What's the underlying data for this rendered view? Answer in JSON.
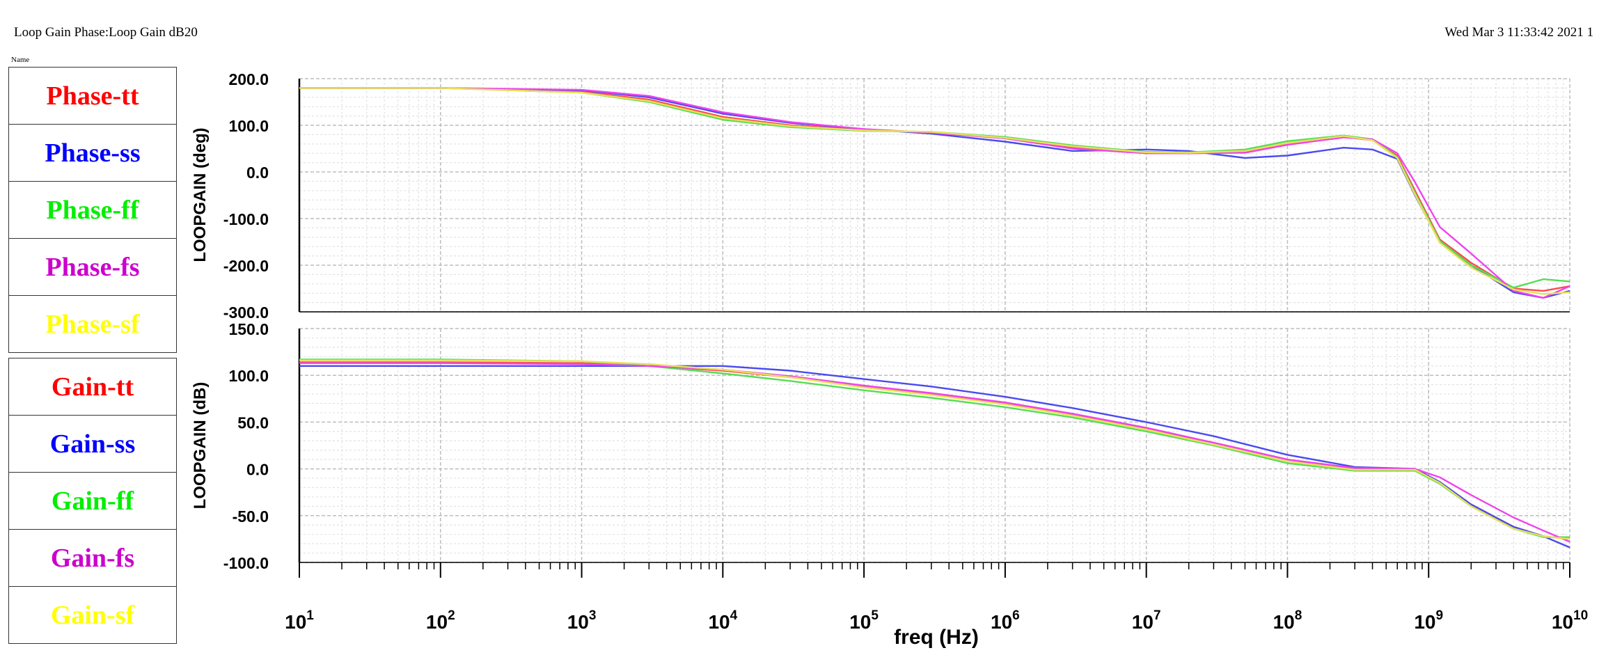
{
  "header": {
    "title": "Loop Gain Phase:Loop Gain dB20",
    "datetime": "Wed Mar 3 11:33:42 2021  1",
    "name_label": "Name"
  },
  "legend_phase": [
    {
      "label": "Phase-tt",
      "color": "#ff0000"
    },
    {
      "label": "Phase-ss",
      "color": "#0000ff"
    },
    {
      "label": "Phase-ff",
      "color": "#00ee00"
    },
    {
      "label": "Phase-fs",
      "color": "#cc00cc"
    },
    {
      "label": "Phase-sf",
      "color": "#ffff00"
    }
  ],
  "legend_gain": [
    {
      "label": "Gain-tt",
      "color": "#ff0000"
    },
    {
      "label": "Gain-ss",
      "color": "#0000ff"
    },
    {
      "label": "Gain-ff",
      "color": "#00ee00"
    },
    {
      "label": "Gain-fs",
      "color": "#cc00cc"
    },
    {
      "label": "Gain-sf",
      "color": "#ffff00"
    }
  ],
  "chart_data": [
    {
      "type": "line",
      "id": "phase",
      "ylabel": "LOOPGAIN (deg)",
      "xlabel": "freq (Hz)",
      "xscale": "log",
      "xlim": [
        10,
        10000000000
      ],
      "ylim": [
        -300,
        200
      ],
      "yticks": [
        "200.0",
        "100.0",
        "0.0",
        "-100.0",
        "-200.0",
        "-300.0"
      ],
      "grid": true,
      "x": [
        10,
        100,
        1000,
        3000,
        10000,
        30000,
        100000,
        300000,
        1000000,
        3000000,
        10000000,
        20000000,
        50000000,
        100000000,
        250000000,
        400000000,
        600000000,
        800000000,
        1200000000,
        2000000000,
        4000000000,
        6500000000,
        10000000000
      ],
      "series": [
        {
          "name": "Phase-tt",
          "color": "#ff4a4a",
          "values": [
            180,
            180,
            172,
            155,
            118,
            100,
            90,
            85,
            72,
            52,
            40,
            40,
            42,
            60,
            75,
            68,
            35,
            -40,
            -145,
            -195,
            -250,
            -255,
            -245
          ]
        },
        {
          "name": "Phase-ss",
          "color": "#4a4af0",
          "values": [
            180,
            180,
            175,
            160,
            125,
            105,
            92,
            82,
            65,
            45,
            48,
            45,
            30,
            35,
            52,
            48,
            28,
            -50,
            -150,
            -200,
            -258,
            -270,
            -255
          ]
        },
        {
          "name": "Phase-ff",
          "color": "#55dd55",
          "values": [
            180,
            180,
            170,
            150,
            112,
            96,
            88,
            86,
            75,
            57,
            43,
            42,
            48,
            66,
            78,
            70,
            32,
            -45,
            -148,
            -200,
            -248,
            -230,
            -235
          ]
        },
        {
          "name": "Phase-fs",
          "color": "#ee44ee",
          "values": [
            180,
            180,
            176,
            163,
            128,
            107,
            92,
            84,
            72,
            50,
            40,
            40,
            41,
            58,
            74,
            70,
            40,
            -22,
            -118,
            -175,
            -255,
            -270,
            -245
          ]
        },
        {
          "name": "Phase-sf",
          "color": "#e8e05a",
          "values": [
            180,
            180,
            170,
            152,
            115,
            98,
            89,
            86,
            73,
            55,
            42,
            41,
            45,
            62,
            77,
            68,
            30,
            -48,
            -152,
            -205,
            -252,
            -262,
            -258
          ]
        }
      ]
    },
    {
      "type": "line",
      "id": "gain",
      "ylabel": "LOOPGAIN (dB)",
      "xlabel": "freq (Hz)",
      "xscale": "log",
      "xlim": [
        10,
        10000000000
      ],
      "ylim": [
        -100,
        150
      ],
      "yticks": [
        "150.0",
        "100.0",
        "50.0",
        "0.0",
        "-50.0",
        "-100.0"
      ],
      "grid": true,
      "x": [
        10,
        100,
        1000,
        3000,
        10000,
        30000,
        100000,
        300000,
        1000000,
        3000000,
        10000000,
        30000000,
        100000000,
        300000000,
        800000000,
        1200000000,
        2000000000,
        4000000000,
        6500000000,
        10000000000
      ],
      "series": [
        {
          "name": "Gain-tt",
          "color": "#ff4a4a",
          "values": [
            114,
            114,
            113,
            110,
            105,
            98,
            88,
            80,
            70,
            58,
            43,
            28,
            10,
            0,
            0,
            -15,
            -38,
            -62,
            -72,
            -75
          ]
        },
        {
          "name": "Gain-ss",
          "color": "#4a4af0",
          "values": [
            110,
            110,
            110,
            110,
            110,
            105,
            96,
            88,
            77,
            65,
            50,
            35,
            15,
            2,
            0,
            -14,
            -38,
            -62,
            -72,
            -84
          ]
        },
        {
          "name": "Gain-ff",
          "color": "#55dd55",
          "values": [
            117,
            117,
            115,
            110,
            102,
            94,
            84,
            76,
            66,
            55,
            40,
            25,
            6,
            -2,
            -2,
            -16,
            -40,
            -64,
            -73,
            -73
          ]
        },
        {
          "name": "Gain-fs",
          "color": "#ee44ee",
          "values": [
            113,
            113,
            112,
            110,
            106,
            99,
            89,
            81,
            71,
            59,
            44,
            28,
            10,
            1,
            0,
            -9,
            -28,
            -52,
            -66,
            -78
          ]
        },
        {
          "name": "Gain-sf",
          "color": "#e8e05a",
          "values": [
            116,
            116,
            115,
            112,
            106,
            98,
            87,
            79,
            69,
            57,
            42,
            26,
            8,
            -1,
            -1,
            -15,
            -40,
            -64,
            -72,
            -75
          ]
        }
      ]
    }
  ]
}
